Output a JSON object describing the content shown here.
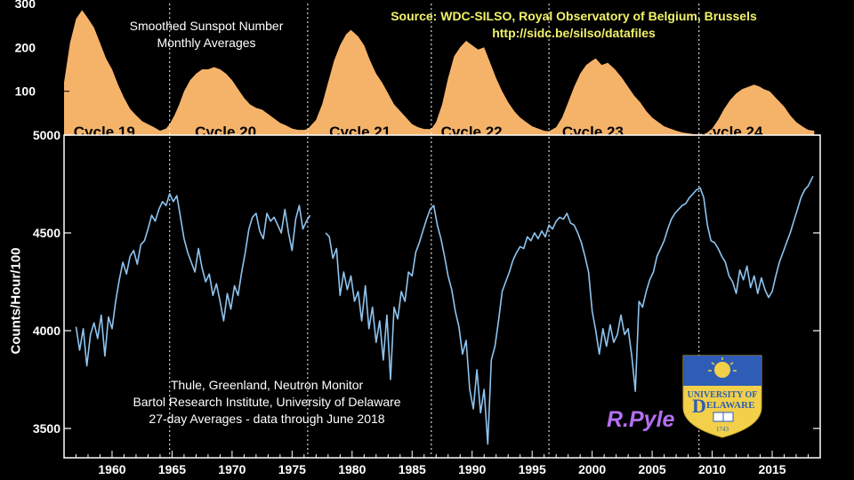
{
  "chart_data": [
    {
      "type": "area",
      "title": "Smoothed Sunspot Number",
      "subtitle": "Monthly Averages",
      "source_line1": "Source: WDC-SILSO, Royal Observatory of Belgium, Brussels",
      "source_line2": "http://sidc.be/silso/datafiles",
      "ylim": [
        0,
        300
      ],
      "yticks": [
        300,
        200,
        100
      ],
      "xlim": [
        1956,
        2019
      ],
      "fill_color": "#f5b36a",
      "x": [
        1956.0,
        1956.5,
        1957.0,
        1957.5,
        1957.9,
        1958.5,
        1959.0,
        1959.5,
        1960.0,
        1960.5,
        1961.0,
        1961.5,
        1962.0,
        1962.5,
        1963.0,
        1963.5,
        1964.0,
        1964.5,
        1964.8,
        1965.2,
        1965.6,
        1966.0,
        1966.5,
        1967.0,
        1967.5,
        1968.0,
        1968.5,
        1969.0,
        1969.5,
        1970.0,
        1970.5,
        1971.0,
        1971.5,
        1972.0,
        1972.5,
        1973.0,
        1973.5,
        1974.0,
        1974.5,
        1975.0,
        1975.5,
        1976.0,
        1976.3,
        1977.0,
        1977.5,
        1978.0,
        1978.5,
        1979.0,
        1979.5,
        1979.9,
        1980.5,
        1981.0,
        1981.5,
        1982.0,
        1982.5,
        1983.0,
        1983.5,
        1984.0,
        1984.5,
        1985.0,
        1985.5,
        1986.0,
        1986.6,
        1987.0,
        1987.5,
        1988.0,
        1988.5,
        1989.0,
        1989.5,
        1990.0,
        1990.5,
        1991.0,
        1991.5,
        1992.0,
        1992.5,
        1993.0,
        1993.5,
        1994.0,
        1994.5,
        1995.0,
        1995.5,
        1996.0,
        1996.4,
        1997.0,
        1997.5,
        1998.0,
        1998.5,
        1999.0,
        1999.5,
        2000.0,
        2000.3,
        2000.8,
        2001.3,
        2001.9,
        2002.5,
        2003.0,
        2003.5,
        2004.0,
        2004.5,
        2005.0,
        2005.5,
        2006.0,
        2006.5,
        2007.0,
        2007.5,
        2008.0,
        2008.5,
        2008.9,
        2009.5,
        2010.0,
        2010.5,
        2011.0,
        2011.5,
        2012.0,
        2012.5,
        2013.0,
        2013.5,
        2014.0,
        2014.3,
        2014.8,
        2015.3,
        2016.0,
        2016.5,
        2017.0,
        2017.5,
        2018.0,
        2018.5
      ],
      "values": [
        120,
        210,
        265,
        285,
        270,
        245,
        210,
        175,
        150,
        115,
        85,
        60,
        45,
        32,
        25,
        18,
        10,
        15,
        25,
        45,
        70,
        100,
        125,
        140,
        150,
        150,
        155,
        150,
        140,
        125,
        105,
        85,
        70,
        62,
        58,
        48,
        38,
        28,
        22,
        15,
        12,
        12,
        14,
        35,
        70,
        120,
        170,
        205,
        230,
        240,
        225,
        205,
        170,
        140,
        120,
        95,
        70,
        55,
        40,
        25,
        18,
        14,
        14,
        30,
        70,
        130,
        180,
        200,
        215,
        205,
        195,
        200,
        165,
        130,
        100,
        75,
        55,
        40,
        30,
        20,
        15,
        10,
        9,
        18,
        40,
        75,
        110,
        140,
        160,
        170,
        175,
        160,
        165,
        150,
        130,
        110,
        90,
        75,
        55,
        40,
        30,
        20,
        15,
        10,
        6,
        4,
        2,
        2,
        4,
        15,
        35,
        60,
        80,
        95,
        105,
        110,
        115,
        110,
        105,
        100,
        85,
        65,
        45,
        30,
        20,
        12,
        10
      ]
    },
    {
      "type": "line",
      "series_color": "#8ec4f0",
      "ylabel": "Counts/Hour/100",
      "ylim": [
        3350,
        5000
      ],
      "yticks": [
        5000,
        4500,
        4000,
        3500
      ],
      "xlim": [
        1956,
        2019
      ],
      "xticks": [
        1960,
        1965,
        1970,
        1975,
        1980,
        1985,
        1990,
        1995,
        2000,
        2005,
        2010,
        2015
      ],
      "cycle_boundaries": [
        1964.8,
        1976.3,
        1986.6,
        1996.4,
        2008.9
      ],
      "annotation_line1": "Thule, Greenland, Neutron Monitor",
      "annotation_line2": "Bartol Research Institute, University of Delaware",
      "annotation_line3": "27-day Averages - data through June 2018",
      "author": "R.Pyle",
      "segments": [
        {
          "x": [
            1957.0,
            1957.3,
            1957.6,
            1957.9,
            1958.2,
            1958.5,
            1958.8,
            1959.1,
            1959.4,
            1959.7,
            1960.0,
            1960.3,
            1960.6,
            1960.9,
            1961.2,
            1961.5,
            1961.8,
            1962.1,
            1962.4,
            1962.7,
            1963.0,
            1963.3,
            1963.6,
            1963.9,
            1964.2,
            1964.5,
            1964.8,
            1965.1,
            1965.4,
            1965.7,
            1966.0,
            1966.3,
            1966.6,
            1966.9,
            1967.2,
            1967.5,
            1967.8,
            1968.1,
            1968.4,
            1968.7,
            1969.0,
            1969.3,
            1969.6,
            1969.9,
            1970.2,
            1970.5,
            1970.8,
            1971.1,
            1971.4,
            1971.7,
            1972.0,
            1972.3,
            1972.6,
            1972.9,
            1973.2,
            1973.5,
            1973.8,
            1974.1,
            1974.4,
            1974.7,
            1975.0,
            1975.3,
            1975.6,
            1975.9,
            1976.2,
            1976.5
          ],
          "y": [
            4020,
            3900,
            4010,
            3820,
            3980,
            4040,
            3960,
            4080,
            3870,
            4070,
            4010,
            4150,
            4260,
            4350,
            4290,
            4380,
            4410,
            4340,
            4440,
            4460,
            4520,
            4590,
            4560,
            4620,
            4660,
            4640,
            4700,
            4660,
            4690,
            4580,
            4470,
            4400,
            4350,
            4300,
            4420,
            4320,
            4250,
            4290,
            4180,
            4240,
            4150,
            4050,
            4190,
            4110,
            4230,
            4180,
            4300,
            4400,
            4520,
            4580,
            4600,
            4510,
            4470,
            4600,
            4560,
            4580,
            4540,
            4500,
            4620,
            4500,
            4410,
            4570,
            4640,
            4520,
            4560,
            4590
          ]
        },
        {
          "x": [
            1977.8,
            1978.1,
            1978.4,
            1978.7,
            1979.0,
            1979.3,
            1979.6,
            1979.9,
            1980.2,
            1980.5,
            1980.8,
            1981.1,
            1981.4,
            1981.7,
            1982.0,
            1982.3,
            1982.6,
            1982.9,
            1983.2,
            1983.5,
            1983.8,
            1984.1,
            1984.4,
            1984.7,
            1985.0,
            1985.3,
            1985.6,
            1985.9,
            1986.2,
            1986.5,
            1986.8,
            1987.1,
            1987.4,
            1987.7,
            1988.0,
            1988.3,
            1988.6,
            1988.9,
            1989.2,
            1989.5,
            1989.8,
            1990.1,
            1990.4,
            1990.7,
            1991.0,
            1991.3,
            1991.6,
            1991.9,
            1992.2,
            1992.5,
            1992.8,
            1993.1,
            1993.4,
            1993.7,
            1994.0,
            1994.3,
            1994.6,
            1994.9,
            1995.2,
            1995.5,
            1995.8,
            1996.1,
            1996.4,
            1996.7,
            1997.0,
            1997.3,
            1997.6,
            1997.9,
            1998.2,
            1998.5,
            1998.8,
            1999.1,
            1999.4,
            1999.7,
            2000.0,
            2000.3,
            2000.6,
            2000.9,
            2001.2,
            2001.5,
            2001.8,
            2002.1,
            2002.4,
            2002.7,
            2003.0,
            2003.3,
            2003.6,
            2003.9,
            2004.2,
            2004.5,
            2004.8,
            2005.1,
            2005.4,
            2005.7,
            2006.0,
            2006.3,
            2006.6,
            2006.9,
            2007.2,
            2007.5,
            2007.8,
            2008.1,
            2008.4,
            2008.7,
            2009.0,
            2009.3,
            2009.6,
            2009.9,
            2010.2,
            2010.5,
            2010.8,
            2011.1,
            2011.4,
            2011.7,
            2012.0,
            2012.3,
            2012.6,
            2012.9,
            2013.2,
            2013.5,
            2013.8,
            2014.1,
            2014.4,
            2014.7,
            2015.0,
            2015.3,
            2015.6,
            2015.9,
            2016.2,
            2016.5,
            2016.8,
            2017.1,
            2017.4,
            2017.7,
            2018.0,
            2018.4
          ],
          "y": [
            4500,
            4480,
            4370,
            4420,
            4180,
            4300,
            4210,
            4280,
            4150,
            4200,
            4050,
            4230,
            4010,
            4120,
            3940,
            4050,
            3850,
            4080,
            3750,
            4120,
            4060,
            4200,
            4150,
            4300,
            4280,
            4400,
            4450,
            4510,
            4570,
            4620,
            4640,
            4540,
            4470,
            4380,
            4280,
            4210,
            4100,
            4020,
            3880,
            3950,
            3700,
            3600,
            3800,
            3580,
            3700,
            3420,
            3850,
            3920,
            4050,
            4200,
            4250,
            4300,
            4360,
            4400,
            4430,
            4420,
            4480,
            4460,
            4500,
            4470,
            4510,
            4480,
            4540,
            4520,
            4560,
            4580,
            4570,
            4600,
            4550,
            4540,
            4500,
            4450,
            4380,
            4300,
            4100,
            4000,
            3880,
            4010,
            3920,
            4030,
            3940,
            3980,
            4080,
            3980,
            4010,
            3870,
            3690,
            4150,
            4120,
            4200,
            4260,
            4300,
            4380,
            4420,
            4460,
            4520,
            4570,
            4600,
            4620,
            4640,
            4650,
            4680,
            4700,
            4720,
            4730,
            4680,
            4540,
            4460,
            4450,
            4420,
            4380,
            4350,
            4280,
            4250,
            4190,
            4310,
            4260,
            4330,
            4220,
            4280,
            4190,
            4270,
            4210,
            4170,
            4200,
            4280,
            4350,
            4400,
            4450,
            4500,
            4560,
            4620,
            4680,
            4720,
            4740,
            4790
          ]
        }
      ]
    }
  ],
  "cycle_labels": [
    "Cycle 19",
    "Cycle 20",
    "Cycle 21",
    "Cycle 22",
    "Cycle 23",
    "Cycle 24"
  ],
  "cycle_label_x": [
    1956.8,
    1966.9,
    1978.1,
    1987.4,
    1997.5,
    2009.1
  ],
  "logo": {
    "line1": "UNIVERSITY OF",
    "line2": "ELAWARE",
    "letter": "D",
    "year": "1743",
    "shield_color": "#f2d04a",
    "top_color": "#2f5db5"
  }
}
